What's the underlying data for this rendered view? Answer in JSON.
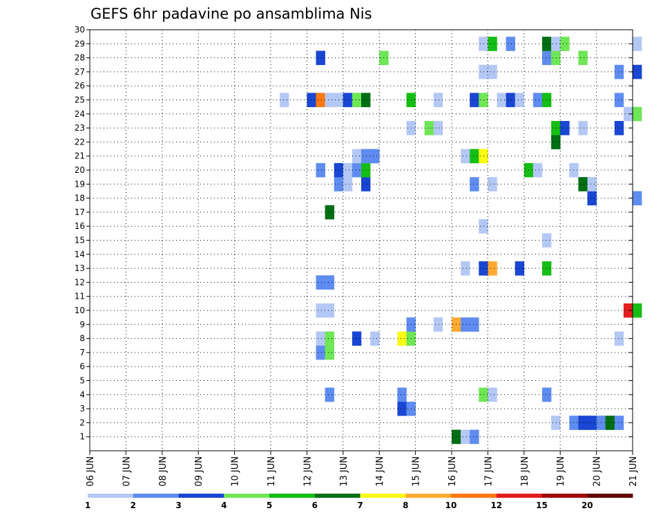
{
  "chart_data": {
    "type": "heatmap",
    "title": "GEFS 6hr padavine po ansamblima Nis",
    "xlabel": "",
    "ylabel": "",
    "x_tick_labels": [
      "06 JUN",
      "07 JUN",
      "08 JUN",
      "09 JUN",
      "10 JUN",
      "11 JUN",
      "12 JUN",
      "13 JUN",
      "14 JUN",
      "15 JUN",
      "16 JUN",
      "17 JUN",
      "18 JUN",
      "19 JUN",
      "20 JUN",
      "21 JUN"
    ],
    "x_range": [
      "06 JUN",
      "21 JUN"
    ],
    "x_step_days": 0.25,
    "y_tick_labels": [
      "1",
      "2",
      "3",
      "4",
      "5",
      "6",
      "7",
      "8",
      "9",
      "10",
      "11",
      "12",
      "13",
      "14",
      "15",
      "16",
      "17",
      "18",
      "19",
      "20",
      "21",
      "22",
      "23",
      "24",
      "25",
      "26",
      "27",
      "28",
      "29",
      "30"
    ],
    "y_range": [
      0,
      30
    ],
    "grid": true,
    "legend": {
      "position": "bottom",
      "boundaries": [
        "1",
        "2",
        "3",
        "4",
        "5",
        "6",
        "7",
        "8",
        "10",
        "12",
        "15",
        "20"
      ],
      "colors": [
        "#b4c8f5",
        "#5f8cf0",
        "#1946d2",
        "#6ee656",
        "#14be14",
        "#006e14",
        "#fafa14",
        "#ffaa32",
        "#ff7814",
        "#e11e1e",
        "#a00a0a",
        "#640000"
      ]
    },
    "columns": [
      "date",
      "member",
      "value"
    ],
    "cells": [
      [
        "16 JUN 00Z",
        1,
        6.5
      ],
      [
        "16 JUN 06Z",
        1,
        1.5
      ],
      [
        "16 JUN 12Z",
        1,
        2.5
      ],
      [
        "18 JUN 18Z",
        2,
        1.5
      ],
      [
        "19 JUN 06Z",
        2,
        2.5
      ],
      [
        "19 JUN 12Z",
        2,
        3.5
      ],
      [
        "19 JUN 18Z",
        2,
        3.5
      ],
      [
        "20 JUN 00Z",
        2,
        2.5
      ],
      [
        "20 JUN 06Z",
        2,
        6.5
      ],
      [
        "20 JUN 12Z",
        2,
        2.5
      ],
      [
        "14 JUN 12Z",
        3,
        3.5
      ],
      [
        "14 JUN 18Z",
        3,
        2.5
      ],
      [
        "12 JUN 12Z",
        4,
        2.5
      ],
      [
        "14 JUN 12Z",
        4,
        2.5
      ],
      [
        "16 JUN 18Z",
        4,
        4.5
      ],
      [
        "17 JUN 00Z",
        4,
        1.5
      ],
      [
        "18 JUN 12Z",
        4,
        2.5
      ],
      [
        "12 JUN 06Z",
        7,
        2.5
      ],
      [
        "12 JUN 12Z",
        7,
        4.5
      ],
      [
        "12 JUN 06Z",
        8,
        1.5
      ],
      [
        "12 JUN 12Z",
        8,
        4.5
      ],
      [
        "13 JUN 06Z",
        8,
        3.5
      ],
      [
        "13 JUN 18Z",
        8,
        1.5
      ],
      [
        "14 JUN 12Z",
        8,
        7.5
      ],
      [
        "14 JUN 18Z",
        8,
        4.5
      ],
      [
        "20 JUN 12Z",
        8,
        1.5
      ],
      [
        "14 JUN 18Z",
        9,
        2.5
      ],
      [
        "15 JUN 12Z",
        9,
        1.5
      ],
      [
        "16 JUN 00Z",
        9,
        9
      ],
      [
        "16 JUN 06Z",
        9,
        2.5
      ],
      [
        "16 JUN 12Z",
        9,
        2.5
      ],
      [
        "20 JUN 18Z",
        10,
        13.5
      ],
      [
        "21 JUN 00Z",
        10,
        5.5
      ],
      [
        "12 JUN 06Z",
        10,
        1.5
      ],
      [
        "12 JUN 12Z",
        10,
        1.5
      ],
      [
        "12 JUN 06Z",
        12,
        2.5
      ],
      [
        "12 JUN 12Z",
        12,
        2.5
      ],
      [
        "16 JUN 06Z",
        13,
        1.5
      ],
      [
        "16 JUN 18Z",
        13,
        3.5
      ],
      [
        "17 JUN 00Z",
        13,
        9
      ],
      [
        "17 JUN 18Z",
        13,
        3.5
      ],
      [
        "18 JUN 12Z",
        13,
        5.5
      ],
      [
        "18 JUN 12Z",
        15,
        1.5
      ],
      [
        "16 JUN 18Z",
        16,
        1.5
      ],
      [
        "12 JUN 12Z",
        17,
        6.5
      ],
      [
        "19 JUN 18Z",
        18,
        3.5
      ],
      [
        "21 JUN 00Z",
        18,
        2.5
      ],
      [
        "12 JUN 18Z",
        19,
        2.5
      ],
      [
        "13 JUN 00Z",
        19,
        1.5
      ],
      [
        "13 JUN 12Z",
        19,
        3.5
      ],
      [
        "16 JUN 12Z",
        19,
        2.5
      ],
      [
        "17 JUN 00Z",
        19,
        1.5
      ],
      [
        "19 JUN 12Z",
        19,
        6.5
      ],
      [
        "19 JUN 18Z",
        19,
        1.5
      ],
      [
        "12 JUN 06Z",
        20,
        2.5
      ],
      [
        "12 JUN 18Z",
        20,
        3.5
      ],
      [
        "13 JUN 00Z",
        20,
        1.5
      ],
      [
        "13 JUN 06Z",
        20,
        2.5
      ],
      [
        "13 JUN 12Z",
        20,
        5.5
      ],
      [
        "18 JUN 00Z",
        20,
        5.5
      ],
      [
        "18 JUN 06Z",
        20,
        1.5
      ],
      [
        "19 JUN 06Z",
        20,
        1.5
      ],
      [
        "16 JUN 06Z",
        21,
        1.5
      ],
      [
        "16 JUN 12Z",
        21,
        5.5
      ],
      [
        "16 JUN 18Z",
        21,
        7.5
      ],
      [
        "13 JUN 06Z",
        21,
        1.5
      ],
      [
        "13 JUN 12Z",
        21,
        2.5
      ],
      [
        "13 JUN 18Z",
        21,
        2.5
      ],
      [
        "18 JUN 18Z",
        22,
        6.5
      ],
      [
        "14 JUN 18Z",
        23,
        1.5
      ],
      [
        "15 JUN 06Z",
        23,
        4.5
      ],
      [
        "15 JUN 12Z",
        23,
        1.5
      ],
      [
        "18 JUN 18Z",
        23,
        5.5
      ],
      [
        "19 JUN 00Z",
        23,
        3.5
      ],
      [
        "19 JUN 12Z",
        23,
        1.5
      ],
      [
        "20 JUN 12Z",
        23,
        3.5
      ],
      [
        "20 JUN 18Z",
        24,
        1.5
      ],
      [
        "21 JUN 00Z",
        24,
        4.5
      ],
      [
        "11 JUN 06Z",
        25,
        1.5
      ],
      [
        "12 JUN 00Z",
        25,
        3.5
      ],
      [
        "12 JUN 06Z",
        25,
        11
      ],
      [
        "12 JUN 12Z",
        25,
        1.5
      ],
      [
        "12 JUN 18Z",
        25,
        1.5
      ],
      [
        "13 JUN 00Z",
        25,
        3.5
      ],
      [
        "13 JUN 06Z",
        25,
        4.5
      ],
      [
        "13 JUN 12Z",
        25,
        6.5
      ],
      [
        "14 JUN 18Z",
        25,
        5.5
      ],
      [
        "15 JUN 12Z",
        25,
        1.5
      ],
      [
        "16 JUN 12Z",
        25,
        3.5
      ],
      [
        "16 JUN 18Z",
        25,
        4.5
      ],
      [
        "17 JUN 06Z",
        25,
        1.5
      ],
      [
        "17 JUN 12Z",
        25,
        3.5
      ],
      [
        "17 JUN 18Z",
        25,
        1.5
      ],
      [
        "18 JUN 06Z",
        25,
        2.5
      ],
      [
        "18 JUN 12Z",
        25,
        5.5
      ],
      [
        "20 JUN 12Z",
        25,
        2.5
      ],
      [
        "16 JUN 18Z",
        27,
        1.5
      ],
      [
        "17 JUN 00Z",
        27,
        1.5
      ],
      [
        "20 JUN 12Z",
        27,
        2.5
      ],
      [
        "21 JUN 00Z",
        27,
        3.5
      ],
      [
        "12 JUN 06Z",
        28,
        3.5
      ],
      [
        "14 JUN 00Z",
        28,
        4.5
      ],
      [
        "18 JUN 12Z",
        28,
        2.5
      ],
      [
        "18 JUN 18Z",
        28,
        4.5
      ],
      [
        "19 JUN 12Z",
        28,
        4.5
      ],
      [
        "16 JUN 18Z",
        29,
        1.5
      ],
      [
        "17 JUN 00Z",
        29,
        5.5
      ],
      [
        "17 JUN 12Z",
        29,
        2.5
      ],
      [
        "18 JUN 12Z",
        29,
        6.5
      ],
      [
        "18 JUN 18Z",
        29,
        1.5
      ],
      [
        "19 JUN 00Z",
        29,
        4.5
      ],
      [
        "21 JUN 00Z",
        29,
        1.5
      ]
    ]
  }
}
